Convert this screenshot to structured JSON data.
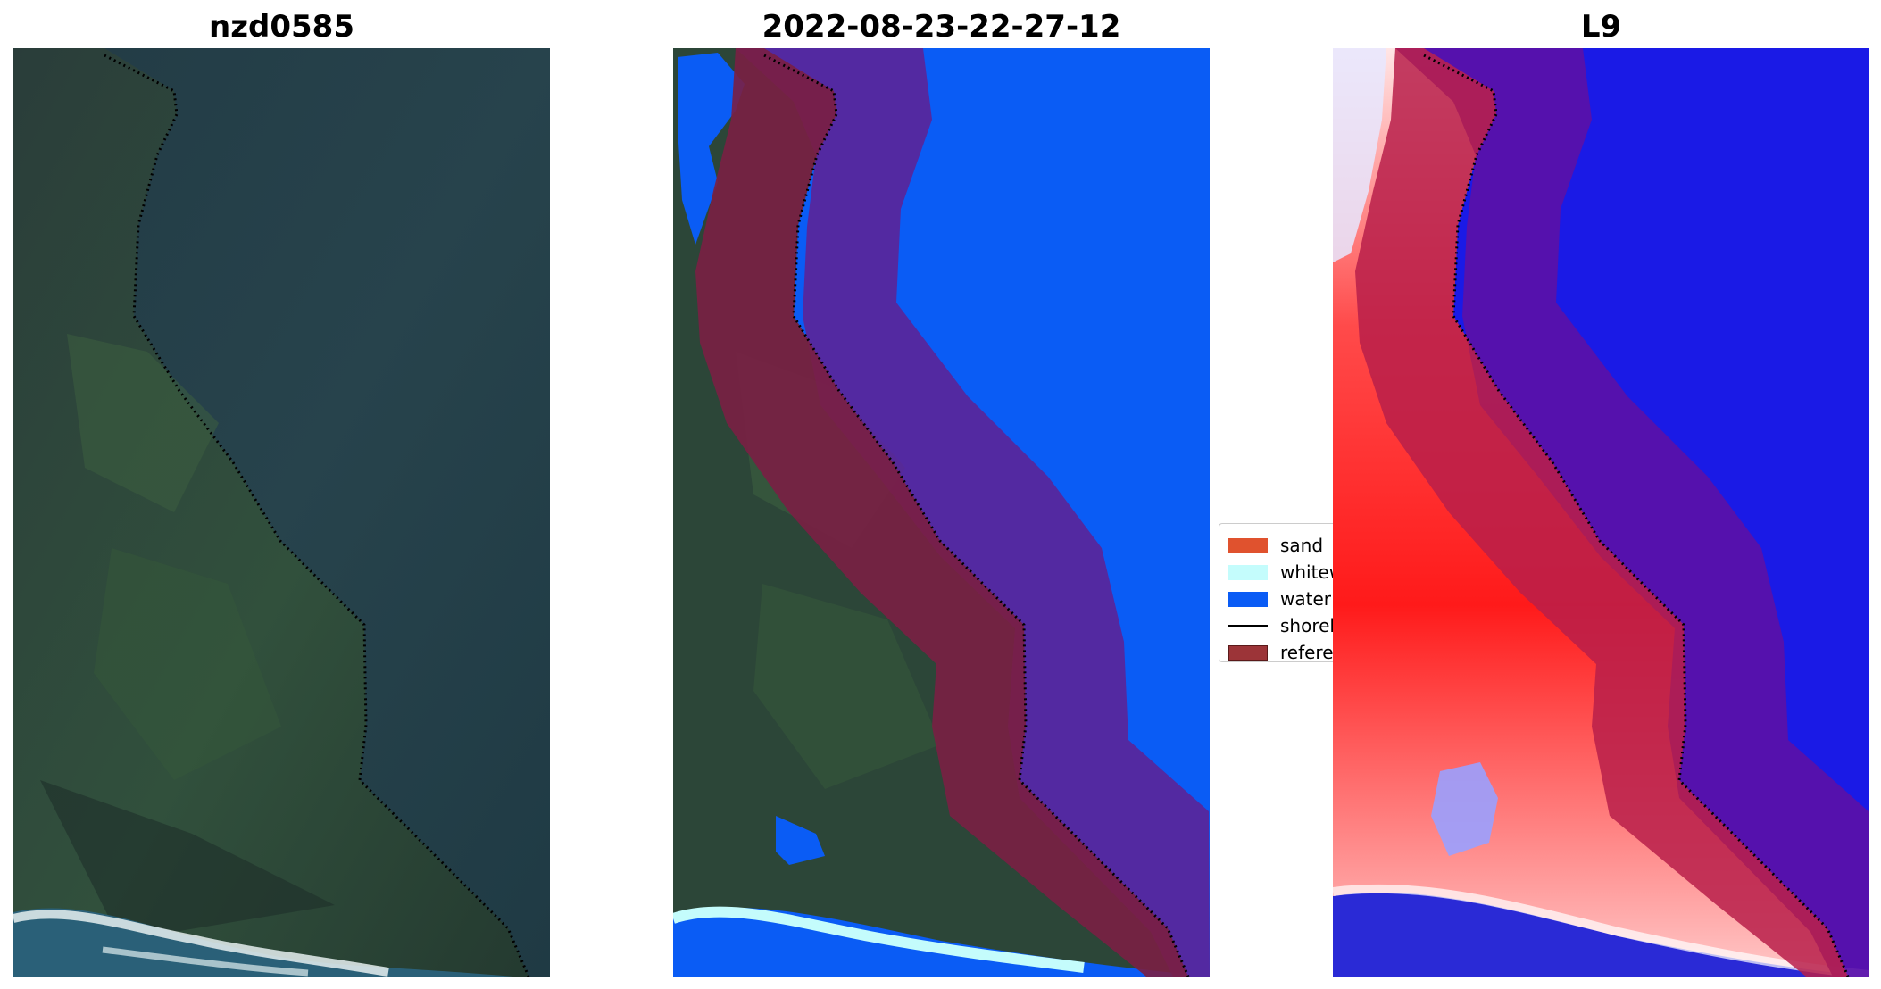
{
  "panels": [
    {
      "title": "nzd0585",
      "type": "rgb-image"
    },
    {
      "title": "2022-08-23-22-27-12",
      "type": "classified-image"
    },
    {
      "title": "L9",
      "type": "index-image"
    }
  ],
  "legend": {
    "items": [
      {
        "label": "sand",
        "color": "#e0522e",
        "kind": "patch"
      },
      {
        "label": "whitewater",
        "color": "#c4fcfc",
        "kind": "patch"
      },
      {
        "label": "water",
        "color": "#0a5cf5",
        "kind": "patch"
      },
      {
        "label": "shoreline",
        "color": "#000000",
        "kind": "line"
      },
      {
        "label": "reference shoreline buffer",
        "color": "#9c3438",
        "kind": "patch"
      }
    ]
  },
  "colors": {
    "ocean_dark": "#1f3a44",
    "land_green": "#2e4a3a",
    "water_class": "#0a5cf5",
    "buffer_purple": "#5a2599",
    "buffer_red": "#7a1f44",
    "index_red": "#ff1a1a",
    "index_blue": "#1a1ae6"
  }
}
